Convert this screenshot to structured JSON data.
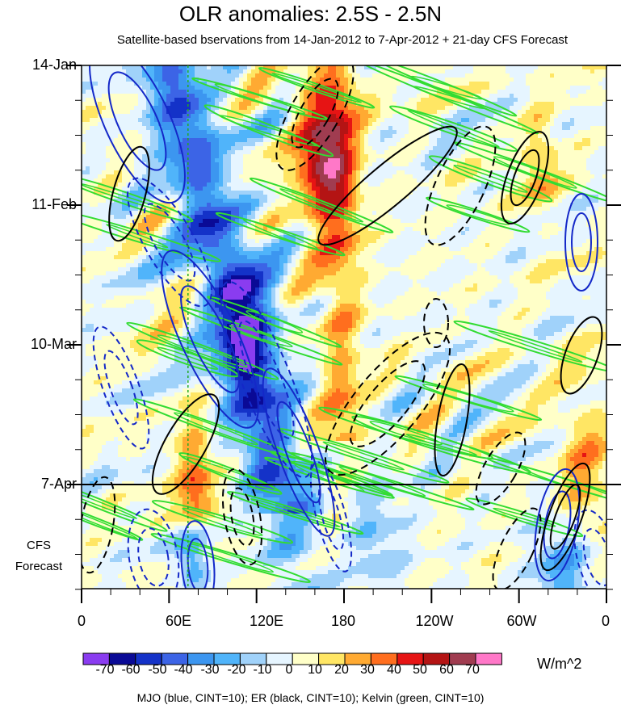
{
  "chart_data": {
    "type": "heatmap",
    "title": "OLR anomalies: 2.5S - 2.5N",
    "subtitle": "Satellite-based bservations from 14-Jan-2012 to 7-Apr-2012 + 21-day CFS Forecast",
    "x_axis": {
      "tick_labels": [
        "0",
        "60E",
        "120E",
        "180",
        "120W",
        "60W",
        "0"
      ],
      "range_deg_east": [
        0,
        360
      ]
    },
    "y_axis": {
      "tick_labels": [
        "14-Jan",
        "11-Feb",
        "10-Mar",
        "7-Apr"
      ],
      "forecast_label_line1": "CFS",
      "forecast_label_line2": "Forecast",
      "range": [
        "14-Jan-2012",
        "28-Apr-2012"
      ]
    },
    "colorbar": {
      "levels": [
        -70,
        -60,
        -50,
        -40,
        -30,
        -20,
        -10,
        0,
        10,
        20,
        30,
        40,
        50,
        60,
        70
      ],
      "label_text": [
        "-70",
        "-60",
        "-50",
        "-40",
        "-30",
        "-20",
        "-10",
        "0",
        "10",
        "20",
        "30",
        "40",
        "50",
        "60",
        "70"
      ],
      "colors": [
        "#8a3cf0",
        "#0a0a96",
        "#1432c8",
        "#3c64e6",
        "#3c96f0",
        "#50b4fa",
        "#a0d2fa",
        "#e6f5ff",
        "#ffffc8",
        "#ffe664",
        "#ffaa32",
        "#ff6e1e",
        "#e61414",
        "#b41414",
        "#a03c50",
        "#ff78c8"
      ],
      "units": "W/m^2"
    },
    "contours": {
      "legend": "MJO (blue, CINT=10); ER (black, CINT=10); Kelvin (green, CINT=10)",
      "colors": {
        "mjo": "#1428c8",
        "er": "#000000",
        "kelvin": "#32dc32"
      }
    },
    "observation_end": "7-Apr",
    "reference_longitude": "73E"
  }
}
